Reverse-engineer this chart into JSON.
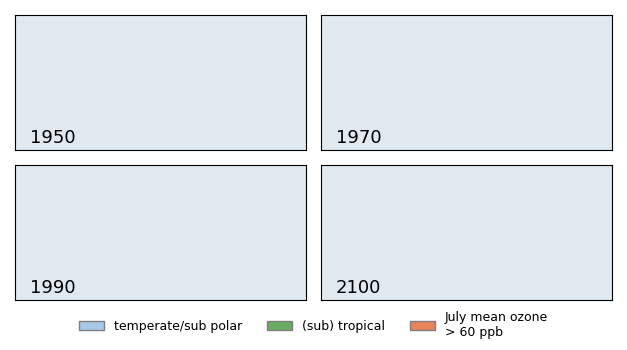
{
  "years": [
    "1950",
    "1970",
    "1990",
    "2100"
  ],
  "legend_items": [
    {
      "label": "temperate/sub polar",
      "color": "#a8c8e8"
    },
    {
      "label": "(sub) tropical",
      "color": "#6aaa64"
    },
    {
      "label": "July mean ozone\n> 60 ppb",
      "color": "#e8845a"
    }
  ],
  "background_color": "#ffffff",
  "label_fontsize": 13,
  "legend_fontsize": 9,
  "map_background": "#f0f0f0",
  "ocean_color": "#ffffff",
  "border_color": "#aaaaaa"
}
